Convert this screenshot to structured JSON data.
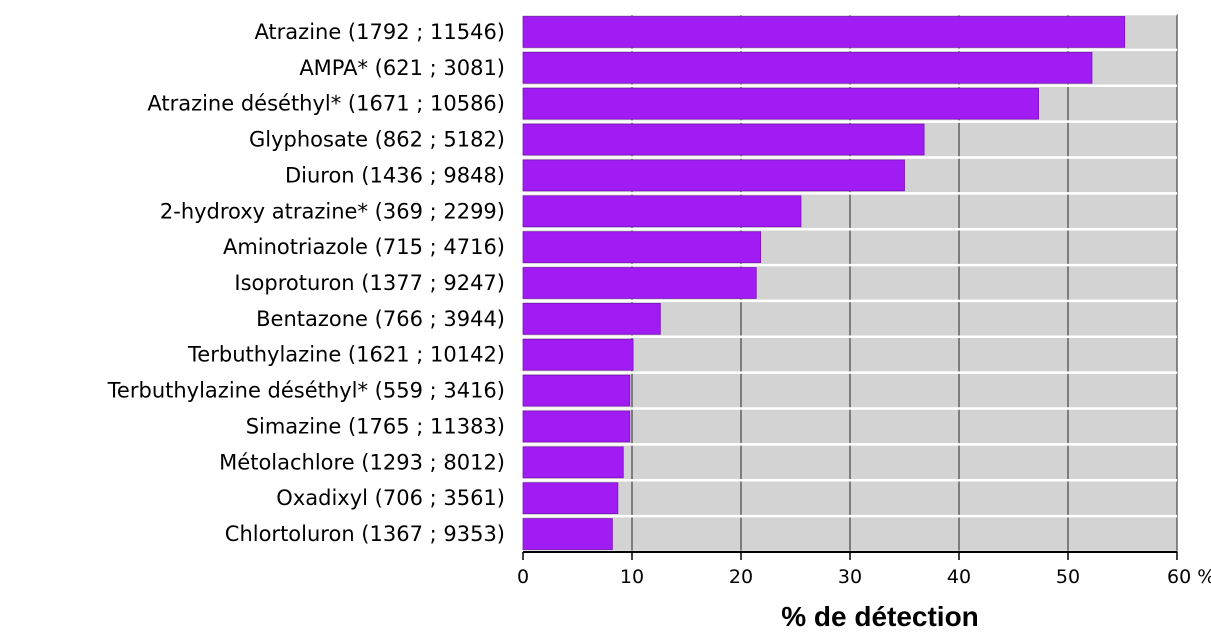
{
  "chart_data": {
    "type": "bar",
    "orientation": "horizontal",
    "categories": [
      "Atrazine (1792 ; 11546)",
      "AMPA* (621 ; 3081)",
      "Atrazine déséthyl* (1671 ; 10586)",
      "Glyphosate (862 ; 5182)",
      "Diuron (1436 ; 9848)",
      "2-hydroxy atrazine* (369 ; 2299)",
      "Aminotriazole (715 ; 4716)",
      "Isoproturon (1377 ; 9247)",
      "Bentazone (766 ; 3944)",
      "Terbuthylazine (1621 ; 10142)",
      "Terbuthylazine déséthyl* (559 ; 3416)",
      "Simazine (1765 ; 11383)",
      "Métolachlore (1293 ; 8012)",
      "Oxadixyl (706 ; 3561)",
      "Chlortoluron (1367 ; 9353)"
    ],
    "values": [
      55.2,
      52.2,
      47.3,
      36.8,
      35.0,
      25.5,
      21.8,
      21.4,
      12.6,
      10.1,
      9.8,
      9.8,
      9.2,
      8.7,
      8.2
    ],
    "xlim": [
      0,
      60
    ],
    "x_ticks": [
      {
        "value": 0,
        "label": "0"
      },
      {
        "value": 10,
        "label": "10"
      },
      {
        "value": 20,
        "label": "20"
      },
      {
        "value": 30,
        "label": "30"
      },
      {
        "value": 40,
        "label": "40"
      },
      {
        "value": 50,
        "label": "50"
      },
      {
        "value": 60,
        "label": "60 %"
      }
    ],
    "xlabel": "% de détection",
    "ylabel": "",
    "title": "",
    "grid": true,
    "colors": {
      "bar": "#a11cf2",
      "bar_outline": "#7a12bb",
      "background": "#d3d3d3",
      "gridline": "#444444",
      "row_separator": "#ffffff"
    }
  }
}
